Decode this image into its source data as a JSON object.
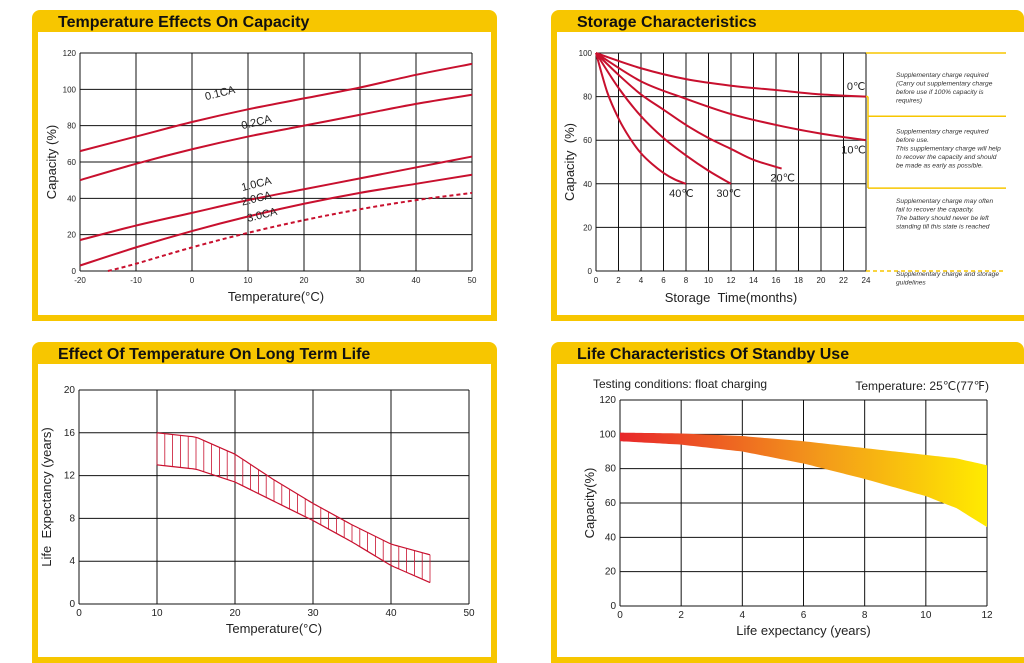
{
  "panels": {
    "temp_capacity": {
      "title": "Temperature Effects On Capacity"
    },
    "storage": {
      "title": "Storage Characteristics"
    },
    "long_term": {
      "title": "Effect Of Temperature On Long Term Life"
    },
    "standby": {
      "title": "Life Characteristics Of Standby Use"
    }
  },
  "colors": {
    "accent": "#f7c600",
    "curve": "#c8102e",
    "grid": "#111111",
    "gradient_start": "#e8262a",
    "gradient_end": "#ffeb00"
  },
  "chart_data": [
    {
      "id": "temp_capacity",
      "type": "line",
      "title": "Temperature Effects On Capacity",
      "xlabel": "Temperature(°C)",
      "ylabel": "Capacity (%)",
      "xlim": [
        -20,
        50
      ],
      "ylim": [
        0,
        120
      ],
      "xticks": [
        -20,
        -10,
        0,
        10,
        20,
        30,
        40,
        50
      ],
      "yticks": [
        0,
        20,
        40,
        60,
        80,
        100,
        120
      ],
      "grid": true,
      "series": [
        {
          "name": "0.1CA",
          "dashed": false,
          "x": [
            -20,
            -10,
            0,
            10,
            20,
            30,
            40,
            50
          ],
          "y": [
            66,
            74,
            82,
            89,
            95,
            101,
            108,
            114
          ]
        },
        {
          "name": "0.2CA",
          "dashed": false,
          "x": [
            -20,
            -10,
            0,
            10,
            20,
            30,
            40,
            50
          ],
          "y": [
            50,
            59,
            67,
            74,
            80,
            86,
            92,
            97
          ]
        },
        {
          "name": "1.0CA",
          "dashed": false,
          "x": [
            -20,
            -10,
            0,
            10,
            20,
            30,
            40,
            50
          ],
          "y": [
            17,
            25,
            32,
            39,
            45,
            51,
            57,
            63
          ]
        },
        {
          "name": "2.0CA",
          "dashed": false,
          "x": [
            -20,
            -10,
            0,
            10,
            20,
            30,
            40,
            50
          ],
          "y": [
            3,
            13,
            22,
            30,
            37,
            43,
            48,
            53
          ]
        },
        {
          "name": "3.0CA",
          "dashed": true,
          "x": [
            -15,
            -10,
            0,
            10,
            20,
            30,
            40,
            50
          ],
          "y": [
            0,
            4,
            13,
            21,
            28,
            34,
            39,
            43
          ]
        }
      ]
    },
    {
      "id": "storage",
      "type": "line",
      "title": "Storage Characteristics",
      "xlabel": "Storage  Time(months)",
      "ylabel": "Capacity  (%)",
      "xlim": [
        0,
        24
      ],
      "ylim": [
        0,
        100
      ],
      "xticks": [
        0,
        2,
        4,
        6,
        8,
        10,
        12,
        14,
        16,
        18,
        20,
        22,
        24
      ],
      "yticks": [
        0,
        20,
        40,
        60,
        80,
        100
      ],
      "grid": true,
      "series": [
        {
          "name": "0℃",
          "x": [
            0,
            4,
            8,
            12,
            16,
            20,
            24
          ],
          "y": [
            100,
            93,
            88,
            85,
            83,
            81,
            80
          ]
        },
        {
          "name": "10℃",
          "x": [
            0,
            4,
            8,
            12,
            16,
            20,
            24
          ],
          "y": [
            100,
            87,
            79,
            72,
            67,
            63,
            60
          ]
        },
        {
          "name": "20℃",
          "x": [
            0,
            2,
            4,
            6,
            8,
            10,
            12,
            14,
            16.5
          ],
          "y": [
            100,
            90,
            81,
            74,
            67,
            61,
            56,
            51,
            47
          ]
        },
        {
          "name": "30℃",
          "x": [
            0,
            2,
            4,
            6,
            8,
            10,
            12
          ],
          "y": [
            100,
            84,
            71,
            61,
            53,
            46,
            40
          ]
        },
        {
          "name": "40℃",
          "x": [
            0,
            1,
            2,
            3,
            4,
            5,
            6,
            7,
            8
          ],
          "y": [
            100,
            82,
            70,
            61,
            54,
            49,
            45,
            42,
            40
          ]
        }
      ],
      "annotations": [
        {
          "y": 80,
          "lines": [
            "Supplementary charge required",
            "(Carry out supplementary charge",
            "before use if 100% capacity is",
            "requires)"
          ]
        },
        {
          "y": 60,
          "lines": [
            "Supplementary charge required",
            "before use.",
            "This supplementary charge will help",
            "to recover the capacity and should",
            "be made  as early as possible."
          ]
        },
        {
          "y": 40,
          "lines": [
            "Supplementary charge may often",
            "fail to recover the capacity.",
            "The battery should never be left",
            "standing till this state is reached"
          ]
        },
        {
          "y": 0,
          "lines": [
            "Supplementary charge and storage",
            "guidelines"
          ]
        }
      ]
    },
    {
      "id": "long_term",
      "type": "area",
      "title": "Effect Of Temperature On Long Term Life",
      "xlabel": "Temperature(°C)",
      "ylabel": "Life  Expectancy (years)",
      "xlim": [
        0,
        50
      ],
      "ylim": [
        0,
        20
      ],
      "xticks": [
        0,
        10,
        20,
        30,
        40,
        50
      ],
      "yticks": [
        0,
        4,
        8,
        12,
        16,
        20
      ],
      "grid": true,
      "x": [
        10,
        15,
        20,
        25,
        30,
        35,
        40,
        45
      ],
      "upper": [
        16,
        15.6,
        14,
        11.6,
        9.4,
        7.4,
        5.6,
        4.6
      ],
      "lower": [
        13,
        12.6,
        11.4,
        9.6,
        7.8,
        5.8,
        3.6,
        2
      ]
    },
    {
      "id": "standby",
      "type": "area",
      "title": "Life Characteristics Of Standby Use",
      "subtitle_left": "Testing conditions: float charging",
      "subtitle_right": "Temperature: 25℃(77℉)",
      "xlabel": "Life expectancy (years)",
      "ylabel": "Capacity(%)",
      "xlim": [
        0,
        12
      ],
      "ylim": [
        0,
        120
      ],
      "xticks": [
        0,
        2,
        4,
        6,
        8,
        10,
        12
      ],
      "yticks": [
        0,
        20,
        40,
        60,
        80,
        100,
        120
      ],
      "grid": true,
      "x": [
        0,
        2,
        4,
        6,
        8,
        9,
        10,
        11,
        12
      ],
      "upper": [
        101,
        100.5,
        99,
        96,
        92,
        90,
        88,
        86,
        82
      ],
      "lower": [
        96,
        94,
        90,
        83,
        74,
        69,
        64,
        57,
        46
      ]
    }
  ]
}
